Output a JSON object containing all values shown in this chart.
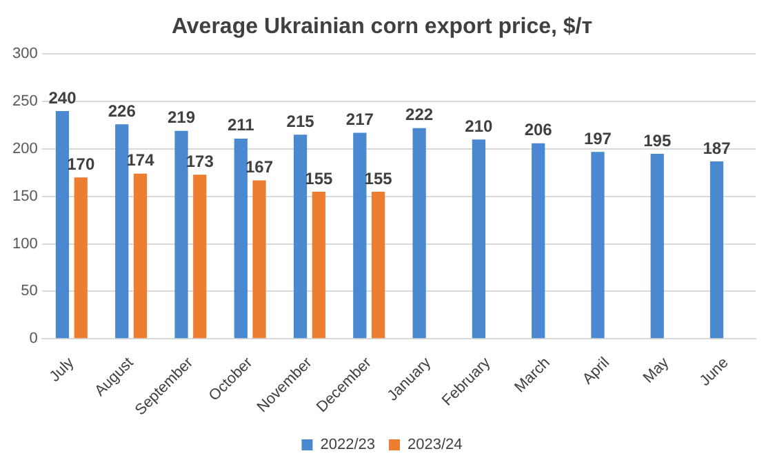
{
  "chart_data": {
    "type": "bar",
    "title": "Average Ukrainian corn export price, $/т",
    "categories": [
      "July",
      "August",
      "September",
      "October",
      "November",
      "December",
      "January",
      "February",
      "March",
      "April",
      "May",
      "June"
    ],
    "series": [
      {
        "name": "2022/23",
        "color": "#4a89d0",
        "values": [
          240,
          226,
          219,
          211,
          215,
          217,
          222,
          210,
          206,
          197,
          195,
          187
        ]
      },
      {
        "name": "2023/24",
        "color": "#ed7d31",
        "values": [
          170,
          174,
          173,
          167,
          155,
          155,
          null,
          null,
          null,
          null,
          null,
          null
        ]
      }
    ],
    "ylim": [
      0,
      300
    ],
    "yticks": [
      0,
      50,
      100,
      150,
      200,
      250,
      300
    ],
    "grid": "y",
    "legend": "bottom",
    "data_labels": true
  }
}
